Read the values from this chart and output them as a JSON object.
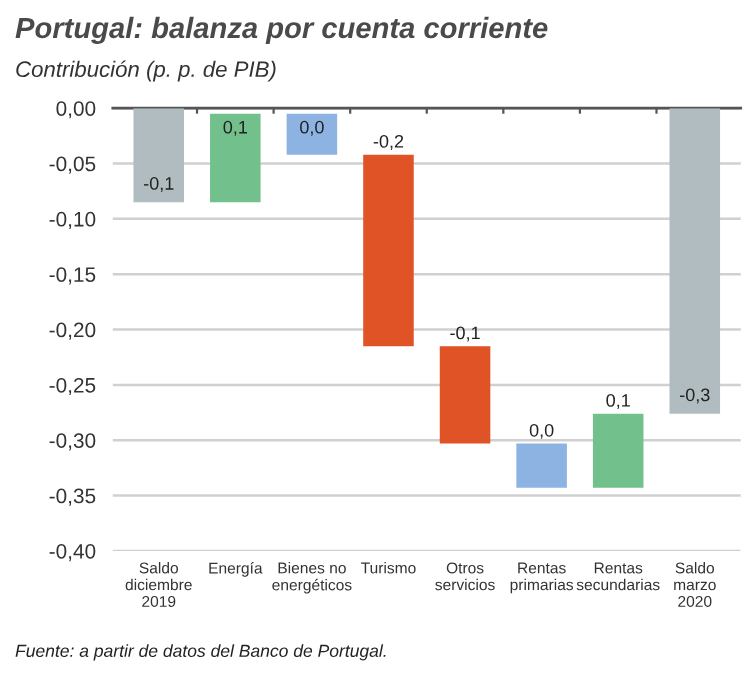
{
  "chart_data": {
    "type": "bar",
    "title": "Portugal: balanza por cuenta corriente",
    "subtitle": "Contribución (p. p. de PIB)",
    "categories": [
      "Saldo\ndiciembre\n2019",
      "Energía",
      "Bienes no\nenergéticos",
      "Turismo",
      "Otros\nservicios",
      "Rentas\nprimarias",
      "Rentas\nsecundarias",
      "Saldo\nmarzo\n2020"
    ],
    "values": [
      -0.085,
      0.08,
      -0.037,
      -0.173,
      -0.088,
      -0.04,
      0.067,
      -0.276
    ],
    "base": [
      0,
      -0.085,
      -0.005,
      -0.042,
      -0.215,
      -0.303,
      -0.343,
      0
    ],
    "colors": [
      "#b0bcbf",
      "#72c08b",
      "#8db3e2",
      "#e05327",
      "#e05327",
      "#8db3e2",
      "#72c08b",
      "#b0bcbf"
    ],
    "value_labels": [
      "-0,1",
      "0,1",
      "0,0",
      "-0,2",
      "-0,1",
      "0,0",
      "0,1",
      "-0,3"
    ],
    "ylim": [
      -0.4,
      0.0
    ],
    "yticks": [
      {
        "value": 0,
        "label": "0,00"
      },
      {
        "value": -0.05,
        "label": "-0,05"
      },
      {
        "value": -0.1,
        "label": "-0,10"
      },
      {
        "value": -0.15,
        "label": "-0,15"
      },
      {
        "value": -0.2,
        "label": "-0,20"
      },
      {
        "value": -0.25,
        "label": "-0,25"
      },
      {
        "value": -0.3,
        "label": "-0,30"
      },
      {
        "value": -0.35,
        "label": "-0,35"
      },
      {
        "value": -0.4,
        "label": "-0,40"
      }
    ],
    "grid": "y",
    "annotations": [
      "Fuente: a partir de datos del Banco de Portugal."
    ]
  }
}
